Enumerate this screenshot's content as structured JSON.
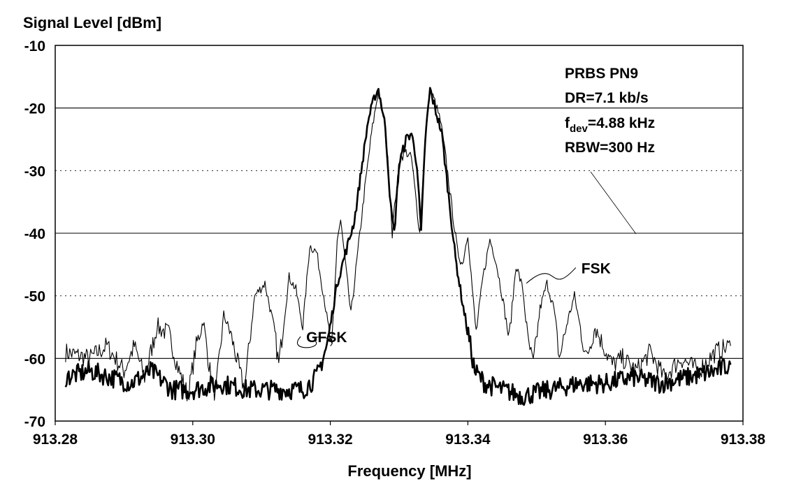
{
  "chart_data": {
    "type": "line",
    "title": "",
    "ylabel": "Signal Level [dBm]",
    "xlabel": "Frequency [MHz]",
    "xlim": [
      913.28,
      913.38
    ],
    "ylim": [
      -70,
      -10
    ],
    "x_ticks": [
      "913.28",
      "913.30",
      "913.32",
      "913.34",
      "913.36",
      "913.38"
    ],
    "x_tick_values": [
      913.28,
      913.3,
      913.32,
      913.34,
      913.36,
      913.38
    ],
    "y_ticks": [
      "-10",
      "-20",
      "-30",
      "-40",
      "-50",
      "-60",
      "-70"
    ],
    "y_tick_values": [
      -10,
      -20,
      -30,
      -40,
      -50,
      -60,
      -70
    ],
    "grid": true,
    "annotation_lines": [
      "PRBS PN9",
      "DR=7.1 kb/s",
      "f",
      "dev",
      "=4.88 kHz",
      "RBW=300 Hz"
    ],
    "series": [
      {
        "name": "FSK",
        "color": "#000000",
        "style": "thin",
        "points": [
          [
            913.2815,
            -59
          ],
          [
            913.285,
            -60
          ],
          [
            913.2875,
            -58
          ],
          [
            913.29,
            -62
          ],
          [
            913.2915,
            -58
          ],
          [
            913.293,
            -63
          ],
          [
            913.2948,
            -55
          ],
          [
            913.2965,
            -56
          ],
          [
            913.298,
            -62
          ],
          [
            913.2993,
            -66
          ],
          [
            913.3005,
            -58
          ],
          [
            913.3015,
            -54
          ],
          [
            913.3025,
            -62
          ],
          [
            913.3033,
            -66
          ],
          [
            913.3045,
            -53
          ],
          [
            913.3055,
            -56
          ],
          [
            913.3068,
            -62
          ],
          [
            913.3075,
            -65
          ],
          [
            913.309,
            -50
          ],
          [
            913.3105,
            -48
          ],
          [
            913.3118,
            -55
          ],
          [
            913.3125,
            -61
          ],
          [
            913.314,
            -47
          ],
          [
            913.315,
            -49
          ],
          [
            913.316,
            -55
          ],
          [
            913.317,
            -42
          ],
          [
            913.318,
            -43
          ],
          [
            913.3192,
            -51
          ],
          [
            913.3202,
            -59
          ],
          [
            913.321,
            -41
          ],
          [
            913.3215,
            -38
          ],
          [
            913.3222,
            -45
          ],
          [
            913.323,
            -53
          ],
          [
            913.324,
            -43
          ],
          [
            913.325,
            -33
          ],
          [
            913.326,
            -24
          ],
          [
            913.327,
            -17
          ],
          [
            913.3278,
            -22
          ],
          [
            913.3285,
            -30
          ],
          [
            913.329,
            -40
          ],
          [
            913.3295,
            -34
          ],
          [
            913.3302,
            -28
          ],
          [
            913.331,
            -27
          ],
          [
            913.3318,
            -28
          ],
          [
            913.3325,
            -35
          ],
          [
            913.333,
            -40
          ],
          [
            913.3338,
            -25
          ],
          [
            913.3345,
            -17
          ],
          [
            913.3352,
            -19
          ],
          [
            913.336,
            -22
          ],
          [
            913.3368,
            -28
          ],
          [
            913.3378,
            -37
          ],
          [
            913.3385,
            -43
          ],
          [
            913.3392,
            -45
          ],
          [
            913.34,
            -40
          ],
          [
            913.3408,
            -51
          ],
          [
            913.3412,
            -56
          ],
          [
            913.3422,
            -47
          ],
          [
            913.3432,
            -41
          ],
          [
            913.344,
            -44
          ],
          [
            913.345,
            -50
          ],
          [
            913.346,
            -57
          ],
          [
            913.347,
            -45
          ],
          [
            913.348,
            -49
          ],
          [
            913.3487,
            -57
          ],
          [
            913.3495,
            -61
          ],
          [
            913.3505,
            -52
          ],
          [
            913.3515,
            -48
          ],
          [
            913.3525,
            -52
          ],
          [
            913.3533,
            -60
          ],
          [
            913.3545,
            -54
          ],
          [
            913.3555,
            -50
          ],
          [
            913.3565,
            -56
          ],
          [
            913.3572,
            -60
          ],
          [
            913.3585,
            -55
          ],
          [
            913.3597,
            -58
          ],
          [
            913.361,
            -61
          ],
          [
            913.3625,
            -60
          ],
          [
            913.3645,
            -62
          ],
          [
            913.3665,
            -59
          ],
          [
            913.3685,
            -63
          ],
          [
            913.371,
            -60
          ],
          [
            913.3735,
            -62
          ],
          [
            913.376,
            -59
          ],
          [
            913.3782,
            -58
          ]
        ]
      },
      {
        "name": "GFSK",
        "color": "#000000",
        "style": "thick",
        "points": [
          [
            913.2815,
            -63
          ],
          [
            913.285,
            -62
          ],
          [
            913.288,
            -63
          ],
          [
            913.291,
            -64
          ],
          [
            913.294,
            -62
          ],
          [
            913.297,
            -65
          ],
          [
            913.3,
            -65
          ],
          [
            913.304,
            -64
          ],
          [
            913.308,
            -65
          ],
          [
            913.312,
            -65
          ],
          [
            913.316,
            -65
          ],
          [
            913.318,
            -63
          ],
          [
            913.3195,
            -58
          ],
          [
            913.321,
            -48
          ],
          [
            913.3225,
            -42
          ],
          [
            913.3235,
            -38
          ],
          [
            913.3245,
            -30
          ],
          [
            913.3255,
            -22
          ],
          [
            913.3265,
            -18
          ],
          [
            913.327,
            -17
          ],
          [
            913.328,
            -23
          ],
          [
            913.3288,
            -36
          ],
          [
            913.3293,
            -40
          ],
          [
            913.33,
            -29
          ],
          [
            913.331,
            -25
          ],
          [
            913.3318,
            -24
          ],
          [
            913.3326,
            -29
          ],
          [
            913.3332,
            -40
          ],
          [
            913.3338,
            -25
          ],
          [
            913.3345,
            -17
          ],
          [
            913.3352,
            -20
          ],
          [
            913.3362,
            -24
          ],
          [
            913.3372,
            -34
          ],
          [
            913.3382,
            -44
          ],
          [
            913.3392,
            -51
          ],
          [
            913.3402,
            -57
          ],
          [
            913.341,
            -62
          ],
          [
            913.3425,
            -64
          ],
          [
            913.345,
            -65
          ],
          [
            913.348,
            -66
          ],
          [
            913.352,
            -65
          ],
          [
            913.356,
            -64
          ],
          [
            913.36,
            -64
          ],
          [
            913.364,
            -63
          ],
          [
            913.368,
            -64
          ],
          [
            913.372,
            -63
          ],
          [
            913.376,
            -62
          ],
          [
            913.3782,
            -61
          ]
        ]
      }
    ],
    "labels": [
      {
        "text": "FSK",
        "x": 913.3565,
        "y": -45.5,
        "leader_to": [
          913.3485,
          -48
        ]
      },
      {
        "text": "GFSK",
        "x": 913.3165,
        "y": -56.5,
        "leader_to": [
          913.32,
          -58
        ]
      }
    ]
  }
}
